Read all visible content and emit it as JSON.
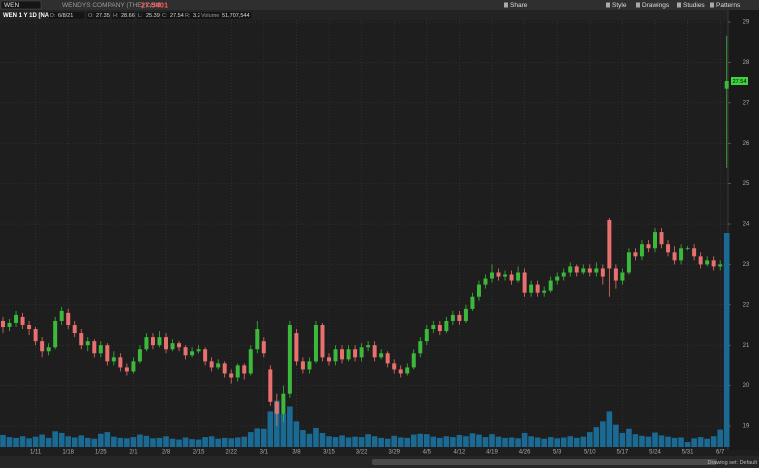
{
  "toolbar": {
    "symbol": "WEN",
    "company": "WENDYS COMPANY (THE) COM",
    "last": 27.5401,
    "buttons": [
      "Share",
      "Style",
      "Drawings",
      "Studies",
      "Patterns"
    ]
  },
  "footer": "Drawing set: Default",
  "chart_data": {
    "type": "candlestick",
    "title": "WEN 1 Y 1D [NASDAQ]",
    "header": [
      {
        "label": "D:",
        "value": "6/8/21"
      },
      {
        "label": "O:"
      },
      {
        "label": "H:"
      },
      {
        "label": "L:"
      },
      {
        "label": "C:"
      },
      {
        "label": "R:",
        "value": 3.27
      },
      {
        "label": "Volume",
        "value": "51,707,544"
      }
    ],
    "categories": [
      null,
      null,
      null,
      null,
      null,
      "1/11",
      null,
      null,
      null,
      null,
      "1/18",
      null,
      null,
      null,
      null,
      "1/25",
      null,
      null,
      null,
      null,
      "2/1",
      null,
      null,
      null,
      null,
      "2/8",
      null,
      null,
      null,
      null,
      "2/15",
      null,
      null,
      null,
      null,
      "2/22",
      null,
      null,
      null,
      null,
      "3/1",
      null,
      null,
      null,
      null,
      "3/8",
      null,
      null,
      null,
      null,
      "3/15",
      null,
      null,
      null,
      null,
      "3/22",
      null,
      null,
      null,
      null,
      "3/29",
      null,
      null,
      null,
      null,
      "4/5",
      null,
      null,
      null,
      null,
      "4/12",
      null,
      null,
      null,
      null,
      "4/19",
      null,
      null,
      null,
      null,
      "4/26",
      null,
      null,
      null,
      null,
      "5/3",
      null,
      null,
      null,
      null,
      "5/10",
      null,
      null,
      null,
      null,
      "5/17",
      null,
      null,
      null,
      null,
      "5/24",
      null,
      null,
      null,
      null,
      "5/31",
      null,
      null,
      null,
      null,
      "6/7",
      null
    ],
    "open": [
      21.6,
      21.45,
      21.55,
      21.7,
      21.5,
      21.4,
      21.1,
      20.85,
      20.95,
      21.6,
      21.8,
      21.5,
      21.3,
      21.0,
      21.1,
      20.8,
      21.0,
      20.6,
      20.7,
      20.45,
      20.35,
      20.6,
      20.9,
      21.2,
      21.0,
      21.2,
      20.9,
      21.05,
      20.95,
      20.75,
      20.85,
      20.9,
      20.6,
      20.45,
      20.55,
      20.3,
      20.2,
      20.5,
      20.3,
      20.9,
      21.1,
      20.4,
      19.6,
      19.3,
      19.8,
      21.3,
      20.6,
      20.4,
      20.6,
      21.5,
      20.7,
      20.6,
      20.9,
      20.65,
      20.9,
      20.7,
      20.95,
      21.0,
      20.7,
      20.8,
      20.55,
      20.4,
      20.3,
      20.45,
      20.8,
      21.1,
      21.4,
      21.5,
      21.35,
      21.6,
      21.75,
      21.6,
      21.9,
      22.2,
      22.5,
      22.65,
      22.8,
      22.7,
      22.75,
      22.6,
      22.8,
      22.3,
      22.5,
      22.3,
      22.35,
      22.6,
      22.7,
      22.8,
      22.95,
      22.8,
      22.9,
      22.8,
      22.9,
      24.1,
      22.9,
      22.6,
      22.8,
      23.3,
      23.2,
      23.5,
      23.4,
      23.8,
      23.5,
      23.3,
      23.1,
      23.4,
      23.4,
      23.2,
      23.0,
      23.1,
      22.95,
      27.35
    ],
    "high": [
      21.7,
      21.65,
      21.85,
      21.8,
      21.6,
      21.45,
      21.2,
      21.05,
      21.7,
      21.95,
      21.9,
      21.6,
      21.4,
      21.2,
      21.15,
      21.1,
      21.05,
      20.85,
      20.8,
      20.55,
      20.7,
      21.0,
      21.3,
      21.3,
      21.35,
      21.3,
      21.15,
      21.1,
      21.0,
      20.95,
      21.0,
      20.95,
      20.7,
      20.65,
      20.6,
      20.4,
      20.55,
      20.55,
      21.0,
      21.6,
      21.2,
      20.5,
      19.8,
      20.0,
      21.6,
      21.4,
      20.7,
      20.7,
      21.6,
      21.55,
      20.8,
      21.0,
      21.0,
      21.0,
      21.0,
      21.05,
      21.1,
      21.1,
      20.9,
      20.85,
      20.65,
      20.5,
      20.55,
      20.9,
      21.2,
      21.5,
      21.6,
      21.6,
      21.7,
      21.85,
      21.85,
      22.0,
      22.3,
      22.6,
      22.75,
      23.0,
      22.9,
      22.85,
      22.85,
      22.95,
      22.9,
      22.6,
      22.6,
      22.45,
      22.7,
      22.8,
      22.9,
      23.05,
      23.0,
      23.0,
      23.0,
      23.05,
      23.0,
      24.15,
      23.0,
      22.9,
      23.4,
      23.4,
      23.6,
      23.6,
      23.9,
      23.9,
      23.6,
      23.45,
      23.5,
      23.45,
      23.5,
      23.3,
      23.2,
      23.2,
      23.1,
      28.66
    ],
    "low": [
      21.3,
      21.35,
      21.45,
      21.4,
      21.25,
      21.0,
      20.7,
      20.75,
      20.9,
      21.5,
      21.4,
      21.2,
      20.9,
      20.85,
      20.7,
      20.7,
      20.5,
      20.5,
      20.35,
      20.25,
      20.3,
      20.55,
      20.85,
      20.9,
      20.95,
      20.8,
      20.85,
      20.85,
      20.65,
      20.7,
      20.8,
      20.5,
      20.35,
      20.4,
      20.2,
      20.05,
      20.1,
      20.15,
      20.25,
      20.8,
      20.7,
      19.5,
      19.0,
      19.1,
      19.7,
      20.5,
      20.3,
      20.3,
      20.55,
      20.6,
      20.5,
      20.5,
      20.55,
      20.6,
      20.6,
      20.6,
      20.85,
      20.6,
      20.65,
      20.45,
      20.3,
      20.2,
      20.25,
      20.4,
      20.7,
      21.0,
      21.3,
      21.25,
      21.3,
      21.5,
      21.5,
      21.55,
      21.85,
      22.1,
      22.4,
      22.55,
      22.6,
      22.6,
      22.5,
      22.55,
      22.2,
      22.2,
      22.2,
      22.2,
      22.3,
      22.5,
      22.6,
      22.7,
      22.7,
      22.75,
      22.7,
      22.7,
      22.5,
      22.2,
      22.4,
      22.5,
      22.75,
      23.1,
      23.1,
      23.3,
      23.3,
      23.4,
      23.2,
      23.0,
      23.0,
      23.35,
      23.1,
      22.9,
      22.95,
      22.85,
      22.85,
      25.39
    ],
    "close": [
      21.45,
      21.55,
      21.75,
      21.5,
      21.4,
      21.1,
      20.85,
      20.95,
      21.6,
      21.85,
      21.5,
      21.3,
      21.0,
      21.1,
      20.8,
      21.0,
      20.6,
      20.7,
      20.45,
      20.35,
      20.6,
      20.9,
      21.2,
      21.0,
      21.2,
      20.9,
      21.05,
      20.95,
      20.75,
      20.85,
      20.9,
      20.6,
      20.45,
      20.55,
      20.3,
      20.2,
      20.5,
      20.3,
      20.9,
      21.4,
      20.8,
      19.6,
      19.3,
      19.8,
      21.5,
      20.6,
      20.4,
      20.6,
      21.5,
      20.7,
      20.6,
      20.9,
      20.65,
      20.9,
      20.7,
      20.95,
      21.0,
      20.7,
      20.8,
      20.55,
      20.4,
      20.3,
      20.45,
      20.8,
      21.1,
      21.4,
      21.5,
      21.35,
      21.6,
      21.75,
      21.6,
      21.9,
      22.2,
      22.5,
      22.65,
      22.8,
      22.7,
      22.75,
      22.6,
      22.8,
      22.3,
      22.5,
      22.3,
      22.35,
      22.6,
      22.7,
      22.8,
      22.95,
      22.8,
      22.9,
      22.8,
      22.9,
      22.7,
      22.9,
      22.6,
      22.8,
      23.3,
      23.2,
      23.5,
      23.4,
      23.8,
      23.5,
      23.3,
      23.1,
      23.4,
      23.4,
      23.2,
      23.0,
      23.1,
      22.95,
      23.0,
      27.54
    ],
    "volume": [
      2900000,
      2400000,
      2200000,
      2600000,
      2100000,
      2500000,
      3000000,
      2200000,
      3800000,
      3400000,
      2600000,
      2300000,
      2800000,
      2200000,
      2000000,
      3200000,
      3600000,
      2500000,
      2200000,
      2100000,
      2400000,
      3000000,
      2700000,
      2100000,
      2200000,
      2600000,
      2000000,
      1800000,
      2300000,
      1900000,
      1800000,
      2400000,
      2600000,
      2000000,
      2200000,
      2100000,
      2300000,
      2500000,
      3600000,
      4500000,
      4400000,
      8600000,
      11200000,
      8000000,
      9800000,
      6200000,
      4100000,
      3200000,
      4600000,
      3400000,
      2600000,
      2400000,
      2800000,
      2300000,
      2500000,
      2400000,
      3100000,
      2600000,
      2200000,
      2000000,
      2700000,
      2300000,
      2200000,
      3000000,
      3200000,
      3100000,
      2500000,
      2200000,
      2600000,
      2400000,
      2900000,
      2600000,
      3300000,
      3000000,
      2400000,
      3100000,
      2500000,
      2200000,
      2300000,
      2100000,
      3400000,
      2600000,
      2300000,
      2000000,
      2400000,
      2100000,
      2300000,
      2600000,
      2200000,
      2500000,
      3600000,
      4800000,
      6200000,
      8600000,
      5400000,
      3400000,
      4400000,
      3100000,
      2700000,
      2500000,
      3500000,
      2800000,
      2500000,
      2200000,
      2300000,
      1200000,
      2100000,
      2400000,
      2000000,
      2600000,
      4200000,
      51707544
    ],
    "up_color": "#3cb83c",
    "down_color": "#e8706e",
    "volume_color": "#1b6a93",
    "last_label_color": "#3fd43f",
    "ylim": [
      18.48,
      29.1
    ],
    "yticks": [
      19,
      20,
      21,
      22,
      23,
      24,
      25,
      26,
      27,
      28,
      29
    ],
    "grid": true
  }
}
